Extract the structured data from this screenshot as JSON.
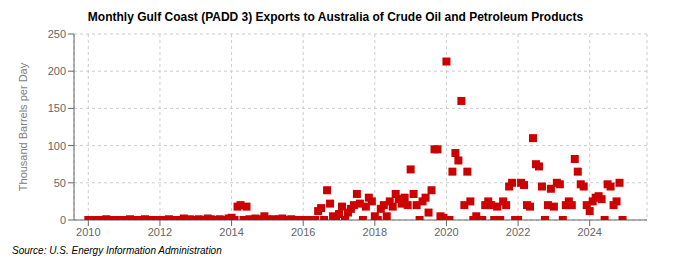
{
  "chart_data": {
    "type": "scatter",
    "title": "Monthly Gulf Coast (PADD 3) Exports to Australia of Crude Oil and Petroleum Products",
    "ylabel": "Thousand Barrels per Day",
    "source": "Source: U.S. Energy Information Administration",
    "color": "#cc0000",
    "marker": "square",
    "grid": true,
    "xlim": [
      2009.6,
      2025.6
    ],
    "xticks": [
      2010,
      2012,
      2014,
      2016,
      2018,
      2020,
      2022,
      2024
    ],
    "ylim": [
      0,
      250
    ],
    "yticks": [
      0,
      50,
      100,
      150,
      200,
      250
    ],
    "x": [
      2010.0,
      2010.083,
      2010.167,
      2010.25,
      2010.333,
      2010.417,
      2010.5,
      2010.583,
      2010.667,
      2010.75,
      2010.833,
      2010.917,
      2011.0,
      2011.083,
      2011.167,
      2011.25,
      2011.333,
      2011.417,
      2011.5,
      2011.583,
      2011.667,
      2011.75,
      2011.833,
      2011.917,
      2012.0,
      2012.083,
      2012.167,
      2012.25,
      2012.333,
      2012.417,
      2012.5,
      2012.583,
      2012.667,
      2012.75,
      2012.833,
      2012.917,
      2013.0,
      2013.083,
      2013.167,
      2013.25,
      2013.333,
      2013.417,
      2013.5,
      2013.583,
      2013.667,
      2013.75,
      2013.833,
      2013.917,
      2014.0,
      2014.083,
      2014.167,
      2014.25,
      2014.333,
      2014.417,
      2014.5,
      2014.583,
      2014.667,
      2014.75,
      2014.833,
      2014.917,
      2015.0,
      2015.083,
      2015.167,
      2015.25,
      2015.333,
      2015.417,
      2015.5,
      2015.583,
      2015.667,
      2015.75,
      2015.833,
      2015.917,
      2016.0,
      2016.083,
      2016.167,
      2016.25,
      2016.333,
      2016.417,
      2016.5,
      2016.583,
      2016.667,
      2016.75,
      2016.833,
      2016.917,
      2017.0,
      2017.083,
      2017.167,
      2017.25,
      2017.333,
      2017.417,
      2017.5,
      2017.583,
      2017.667,
      2017.75,
      2017.833,
      2017.917,
      2018.0,
      2018.083,
      2018.167,
      2018.25,
      2018.333,
      2018.417,
      2018.5,
      2018.583,
      2018.667,
      2018.75,
      2018.833,
      2018.917,
      2019.0,
      2019.083,
      2019.167,
      2019.25,
      2019.333,
      2019.417,
      2019.5,
      2019.583,
      2019.667,
      2019.75,
      2019.833,
      2019.917,
      2020.0,
      2020.083,
      2020.167,
      2020.25,
      2020.333,
      2020.417,
      2020.5,
      2020.583,
      2020.667,
      2020.75,
      2020.833,
      2020.917,
      2021.0,
      2021.083,
      2021.167,
      2021.25,
      2021.333,
      2021.417,
      2021.5,
      2021.583,
      2021.667,
      2021.75,
      2021.833,
      2021.917,
      2022.0,
      2022.083,
      2022.167,
      2022.25,
      2022.333,
      2022.417,
      2022.5,
      2022.583,
      2022.667,
      2022.75,
      2022.833,
      2022.917,
      2023.0,
      2023.083,
      2023.167,
      2023.25,
      2023.333,
      2023.417,
      2023.5,
      2023.583,
      2023.667,
      2023.75,
      2023.833,
      2023.917,
      2024.0,
      2024.083,
      2024.167,
      2024.25,
      2024.333,
      2024.417,
      2024.5,
      2024.583,
      2024.667,
      2024.75,
      2024.833,
      2024.917
    ],
    "values": [
      0,
      0,
      0,
      0,
      0,
      0,
      1,
      0,
      0,
      0,
      0,
      0,
      0,
      0,
      1,
      0,
      0,
      0,
      0,
      1,
      0,
      0,
      0,
      0,
      0,
      0,
      0,
      1,
      0,
      0,
      0,
      0,
      2,
      0,
      1,
      0,
      0,
      1,
      0,
      0,
      2,
      1,
      0,
      0,
      1,
      0,
      0,
      2,
      3,
      0,
      18,
      20,
      0,
      18,
      1,
      0,
      2,
      0,
      1,
      5,
      1,
      0,
      1,
      0,
      1,
      2,
      0,
      0,
      1,
      0,
      0,
      0,
      0,
      0,
      0,
      0,
      0,
      12,
      16,
      0,
      40,
      22,
      5,
      0,
      8,
      18,
      0,
      10,
      15,
      20,
      35,
      22,
      0,
      18,
      30,
      25,
      5,
      0,
      15,
      20,
      5,
      25,
      18,
      35,
      28,
      22,
      30,
      20,
      68,
      35,
      20,
      0,
      25,
      30,
      10,
      40,
      95,
      95,
      5,
      3,
      213,
      0,
      65,
      90,
      80,
      160,
      20,
      65,
      25,
      0,
      5,
      0,
      0,
      20,
      25,
      20,
      0,
      18,
      0,
      25,
      20,
      45,
      50,
      0,
      0,
      50,
      47,
      20,
      18,
      110,
      75,
      72,
      45,
      0,
      20,
      42,
      18,
      50,
      48,
      0,
      20,
      25,
      20,
      82,
      65,
      48,
      45,
      20,
      12,
      25,
      30,
      32,
      28,
      0,
      48,
      45,
      20,
      25,
      50,
      0
    ]
  }
}
